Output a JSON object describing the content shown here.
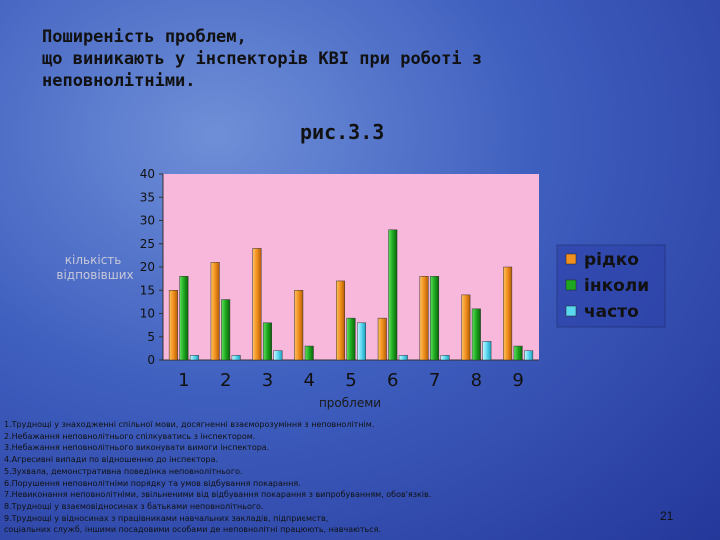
{
  "slide": {
    "title": "Поширеність проблем,\nщо виникають у інспекторів КВІ при роботі з\nнеповнолітніми.",
    "figure_label": "рис.3.3",
    "page_number": "21",
    "notes": [
      "1.Труднощі у знаходженні спільної мови, досягненні взаєморозуміння з неповнолітнім.",
      "2.Небажання неповнолітнього спілкуватись з інспектором.",
      "3.Небажання неповнолітнього виконувати вимоги інспектора.",
      "4.Агресивні випади по відношенню до інспектора.",
      "5.Зухвала, демонстративна поведінка неповнолітнього.",
      "6.Порушення неповнолітніми порядку та умов відбування покарання.",
      "7.Невиконання неповнолітніми, звільненими від відбування покарання з випробуванням, обов'язків.",
      "8.Труднощі у взаємовідносинах з батьками неповнолітнього.",
      "9.Труднощі у відносинах з працівниками навчальних закладів, підприємств,",
      "соціальних служб, іншими посадовими особами де неповнолітні працюють, навчаються."
    ]
  },
  "chart_data": {
    "type": "bar",
    "categories": [
      "1",
      "2",
      "3",
      "4",
      "5",
      "6",
      "7",
      "8",
      "9"
    ],
    "series": [
      {
        "name": "рідко",
        "color": "#f0901e",
        "values": [
          15,
          21,
          24,
          15,
          17,
          9,
          18,
          14,
          20
        ]
      },
      {
        "name": "інколи",
        "color": "#1fa81f",
        "values": [
          18,
          13,
          8,
          3,
          9,
          28,
          18,
          11,
          3
        ]
      },
      {
        "name": "часто",
        "color": "#5ad8f0",
        "values": [
          1,
          1,
          2,
          0,
          8,
          1,
          1,
          4,
          2
        ]
      }
    ],
    "xlabel": "проблеми",
    "ylabel": "кількість відповівших",
    "ylim": [
      0,
      40
    ],
    "yticks": [
      "0",
      "5",
      "10",
      "15",
      "20",
      "25",
      "30",
      "35",
      "40"
    ],
    "plot_background": "#f7b8dc",
    "legend": "right",
    "grid": false
  }
}
